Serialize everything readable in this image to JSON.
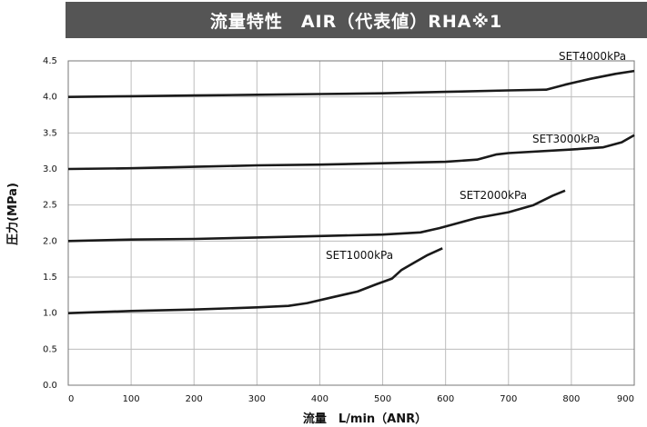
{
  "chart_data": {
    "type": "line",
    "title": "流量特性　AIR（代表値）RHA※1",
    "xlabel": "流量　L/min（ANR）",
    "ylabel": "圧力(MPa)",
    "xlim": [
      0,
      900
    ],
    "ylim": [
      0,
      4.5
    ],
    "x_ticks": [
      "0",
      "100",
      "200",
      "300",
      "400",
      "500",
      "600",
      "700",
      "800",
      "900"
    ],
    "y_ticks": [
      "0.0",
      "0.5",
      "1.0",
      "1.5",
      "2.0",
      "2.5",
      "3.0",
      "3.5",
      "4.0",
      "4.5"
    ],
    "grid": true,
    "line_color": "#1a1a1a",
    "series": [
      {
        "name": "SET1000kPa",
        "points": [
          [
            0,
            1.0
          ],
          [
            100,
            1.03
          ],
          [
            200,
            1.05
          ],
          [
            300,
            1.08
          ],
          [
            350,
            1.1
          ],
          [
            380,
            1.14
          ],
          [
            420,
            1.22
          ],
          [
            460,
            1.3
          ],
          [
            490,
            1.4
          ],
          [
            515,
            1.48
          ],
          [
            530,
            1.6
          ],
          [
            550,
            1.7
          ],
          [
            570,
            1.8
          ],
          [
            595,
            1.9
          ]
        ]
      },
      {
        "name": "SET2000kPa",
        "points": [
          [
            0,
            2.0
          ],
          [
            100,
            2.02
          ],
          [
            200,
            2.03
          ],
          [
            300,
            2.05
          ],
          [
            400,
            2.07
          ],
          [
            500,
            2.09
          ],
          [
            560,
            2.12
          ],
          [
            590,
            2.18
          ],
          [
            620,
            2.25
          ],
          [
            650,
            2.32
          ],
          [
            700,
            2.4
          ],
          [
            740,
            2.5
          ],
          [
            770,
            2.63
          ],
          [
            790,
            2.7
          ]
        ]
      },
      {
        "name": "SET3000kPa",
        "points": [
          [
            0,
            3.0
          ],
          [
            100,
            3.01
          ],
          [
            200,
            3.03
          ],
          [
            300,
            3.05
          ],
          [
            400,
            3.06
          ],
          [
            500,
            3.08
          ],
          [
            600,
            3.1
          ],
          [
            650,
            3.13
          ],
          [
            680,
            3.2
          ],
          [
            700,
            3.22
          ],
          [
            800,
            3.27
          ],
          [
            850,
            3.3
          ],
          [
            880,
            3.37
          ],
          [
            900,
            3.47
          ]
        ]
      },
      {
        "name": "SET4000kPa",
        "points": [
          [
            0,
            4.0
          ],
          [
            100,
            4.01
          ],
          [
            200,
            4.02
          ],
          [
            300,
            4.03
          ],
          [
            400,
            4.04
          ],
          [
            500,
            4.05
          ],
          [
            600,
            4.07
          ],
          [
            700,
            4.09
          ],
          [
            760,
            4.1
          ],
          [
            790,
            4.17
          ],
          [
            830,
            4.25
          ],
          [
            870,
            4.32
          ],
          [
            900,
            4.36
          ]
        ]
      }
    ]
  }
}
